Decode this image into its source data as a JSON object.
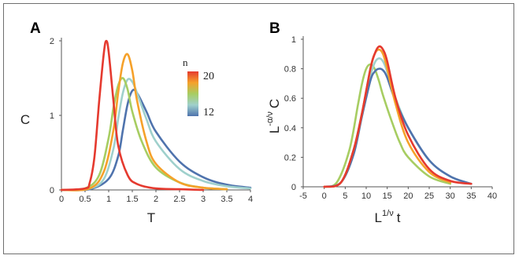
{
  "colors": {
    "n20": "#e53a2f",
    "n18": "#f5a12a",
    "n16": "#a7cd62",
    "n14": "#9fd0cc",
    "n12": "#4f73ad"
  },
  "legend": {
    "title": "n",
    "top_label": "20",
    "bottom_label": "12",
    "gradient": [
      "#e53a2f",
      "#f5a12a",
      "#a7cd62",
      "#9fd0cc",
      "#4f73ad"
    ]
  },
  "chart_data": [
    {
      "panel": "A",
      "type": "line",
      "xlabel": "T",
      "ylabel": "C",
      "xlim": [
        0,
        4
      ],
      "ylim": [
        0,
        2
      ],
      "xticks": [
        "0",
        "0.5",
        "1",
        "1.5",
        "2",
        "2.5",
        "3",
        "3.5",
        "4"
      ],
      "yticks": [
        "0",
        "1",
        "2"
      ],
      "series": [
        {
          "color": "#4f73ad",
          "x": [
            0,
            0.6,
            1.0,
            1.2,
            1.3,
            1.4,
            1.5,
            1.6,
            1.8,
            2.0,
            2.5,
            3.0,
            3.5,
            4.0
          ],
          "y": [
            0,
            0.01,
            0.15,
            0.45,
            0.8,
            1.15,
            1.33,
            1.3,
            1.05,
            0.78,
            0.38,
            0.17,
            0.07,
            0.03
          ]
        },
        {
          "color": "#9fd0cc",
          "x": [
            0,
            0.6,
            0.9,
            1.1,
            1.2,
            1.3,
            1.4,
            1.5,
            1.6,
            1.8,
            2.0,
            2.5,
            3.0,
            3.5,
            4.0
          ],
          "y": [
            0,
            0.02,
            0.15,
            0.55,
            0.95,
            1.3,
            1.48,
            1.45,
            1.3,
            0.95,
            0.65,
            0.28,
            0.12,
            0.05,
            0.02
          ]
        },
        {
          "color": "#a7cd62",
          "x": [
            0,
            0.5,
            0.8,
            1.0,
            1.1,
            1.2,
            1.3,
            1.4,
            1.5,
            1.7,
            2.0,
            2.5,
            3.0,
            3.5
          ],
          "y": [
            0,
            0.02,
            0.2,
            0.7,
            1.1,
            1.4,
            1.5,
            1.35,
            1.05,
            0.65,
            0.3,
            0.1,
            0.03,
            0.01
          ]
        },
        {
          "color": "#f5a12a",
          "x": [
            0,
            0.6,
            0.9,
            1.1,
            1.2,
            1.3,
            1.4,
            1.5,
            1.6,
            1.8,
            2.0,
            2.5,
            3.0,
            3.5
          ],
          "y": [
            0,
            0.02,
            0.25,
            0.8,
            1.3,
            1.7,
            1.82,
            1.6,
            1.2,
            0.65,
            0.35,
            0.1,
            0.03,
            0.01
          ]
        },
        {
          "color": "#e53a2f",
          "x": [
            0,
            0.5,
            0.6,
            0.7,
            0.8,
            0.9,
            0.95,
            1.0,
            1.1,
            1.2,
            1.4,
            1.6,
            2.0,
            2.5,
            3.0
          ],
          "y": [
            0,
            0.02,
            0.1,
            0.45,
            1.2,
            1.85,
            2.0,
            1.85,
            1.2,
            0.6,
            0.2,
            0.08,
            0.02,
            0.01,
            0
          ]
        }
      ]
    },
    {
      "panel": "B",
      "type": "line",
      "xlabel_main": "L",
      "xlabel_sup": "1/ν",
      "xlabel_tail": "t",
      "ylabel_main": "L",
      "ylabel_sup": "-α/ν",
      "ylabel_tail": "C",
      "xlim": [
        -5,
        40
      ],
      "ylim": [
        0,
        1
      ],
      "xticks": [
        "-5",
        "0",
        "5",
        "10",
        "15",
        "20",
        "25",
        "30",
        "35",
        "40"
      ],
      "yticks": [
        "0",
        "0.2",
        "0.4",
        "0.6",
        "0.8",
        "1"
      ],
      "series": [
        {
          "color": "#a7cd62",
          "x": [
            0,
            3,
            6,
            8,
            9,
            10,
            11,
            12,
            13,
            14,
            16,
            18,
            20,
            25,
            30
          ],
          "y": [
            0,
            0.03,
            0.25,
            0.55,
            0.7,
            0.8,
            0.83,
            0.8,
            0.72,
            0.62,
            0.45,
            0.3,
            0.2,
            0.07,
            0.02
          ]
        },
        {
          "color": "#9fd0cc",
          "x": [
            0,
            4,
            7,
            9,
            11,
            12,
            13,
            14,
            15,
            17,
            20,
            25,
            30,
            35
          ],
          "y": [
            0,
            0.03,
            0.25,
            0.5,
            0.75,
            0.84,
            0.87,
            0.85,
            0.78,
            0.6,
            0.4,
            0.18,
            0.07,
            0.02
          ]
        },
        {
          "color": "#4f73ad",
          "x": [
            0,
            4,
            7,
            9,
            11,
            12,
            13,
            14,
            15,
            17,
            20,
            25,
            30,
            35
          ],
          "y": [
            0,
            0.03,
            0.22,
            0.48,
            0.72,
            0.78,
            0.8,
            0.79,
            0.74,
            0.58,
            0.4,
            0.18,
            0.07,
            0.02
          ]
        },
        {
          "color": "#f5a12a",
          "x": [
            0,
            4,
            7,
            9,
            11,
            12,
            13,
            14,
            15,
            17,
            20,
            25,
            30
          ],
          "y": [
            0,
            0.03,
            0.25,
            0.5,
            0.8,
            0.9,
            0.93,
            0.9,
            0.8,
            0.56,
            0.3,
            0.1,
            0.03
          ]
        },
        {
          "color": "#e53a2f",
          "x": [
            0,
            4,
            7,
            9,
            11,
            12,
            13,
            14,
            15,
            17,
            20,
            25,
            30,
            35
          ],
          "y": [
            0,
            0.03,
            0.25,
            0.5,
            0.8,
            0.9,
            0.95,
            0.93,
            0.85,
            0.6,
            0.35,
            0.12,
            0.04,
            0.02
          ]
        }
      ]
    }
  ]
}
